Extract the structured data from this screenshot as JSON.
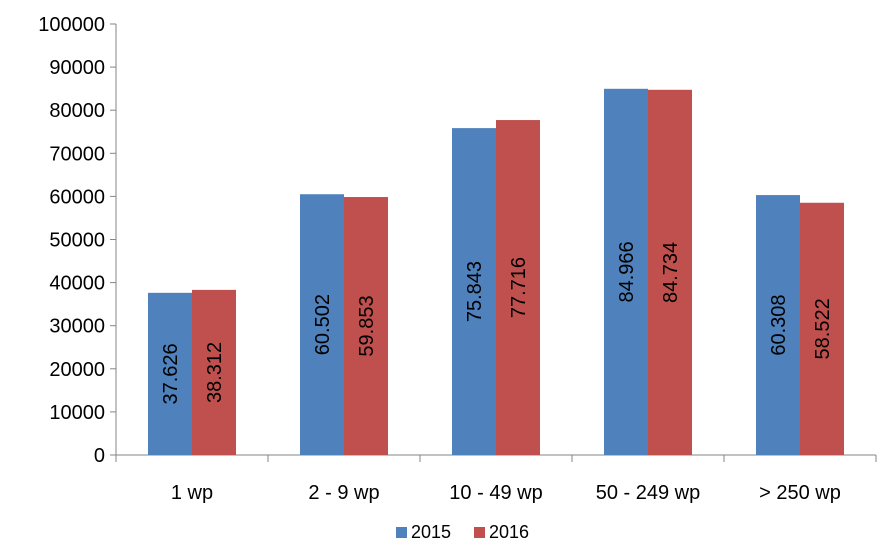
{
  "chart_data": {
    "type": "bar",
    "title": "",
    "xlabel": "",
    "ylabel": "",
    "categories": [
      "1 wp",
      "2 - 9 wp",
      "10 - 49 wp",
      "50 - 249 wp",
      "> 250 wp"
    ],
    "series": [
      {
        "name": "2015",
        "color": "#4F81BD",
        "values": [
          37626,
          60502,
          75843,
          84966,
          60308
        ],
        "labels": [
          "37.626",
          "60.502",
          "75.843",
          "84.966",
          "60.308"
        ]
      },
      {
        "name": "2016",
        "color": "#C0504D",
        "values": [
          38312,
          59853,
          77716,
          84734,
          58522
        ],
        "labels": [
          "38.312",
          "59.853",
          "77.716",
          "84.734",
          "58.522"
        ]
      }
    ],
    "ylim": [
      0,
      100000
    ],
    "yticks": [
      "0",
      "10000",
      "20000",
      "30000",
      "40000",
      "50000",
      "60000",
      "70000",
      "80000",
      "90000",
      "100000"
    ],
    "grid": false,
    "legend_position": "bottom"
  }
}
